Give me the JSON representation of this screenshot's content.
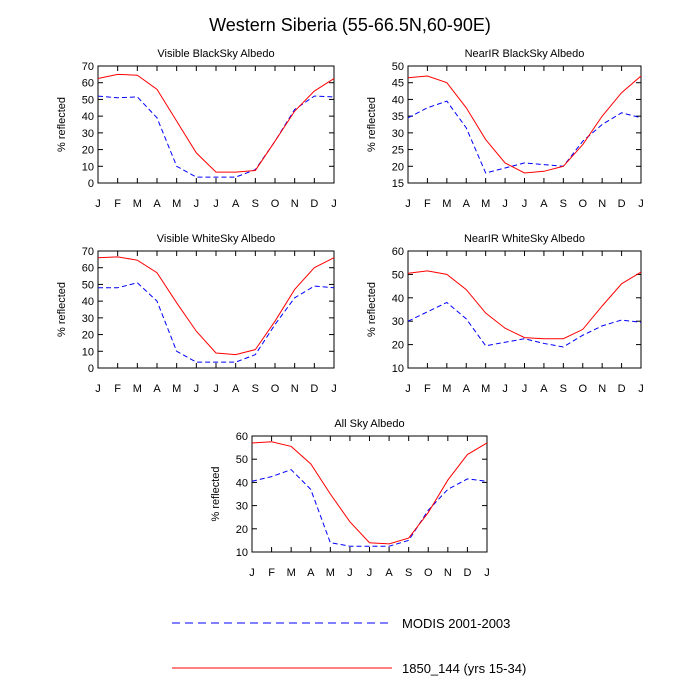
{
  "title": "Western Siberia (55-66.5N,60-90E)",
  "legend": [
    {
      "name": "MODIS 2001-2003",
      "color": "#0000ff",
      "dash": true
    },
    {
      "name": "1850_144 (yrs 15-34)",
      "color": "#ff0000",
      "dash": false
    }
  ],
  "chart_data": [
    {
      "type": "line",
      "title": "Visible BlackSky Albedo",
      "ylabel": "% reflected",
      "categories": [
        "J",
        "F",
        "M",
        "A",
        "M",
        "J",
        "J",
        "A",
        "S",
        "O",
        "N",
        "D",
        "J"
      ],
      "ylim": [
        0,
        70
      ],
      "yticks": [
        0,
        10,
        20,
        30,
        40,
        50,
        60,
        70
      ],
      "series": [
        {
          "name": "MODIS 2001-2003",
          "color": "#0000ff",
          "dash": true,
          "values": [
            52,
            51,
            51.5,
            39,
            10,
            3.5,
            3.5,
            3.5,
            8,
            25,
            44,
            52,
            51.5
          ]
        },
        {
          "name": "1850_144 (yrs 15-34)",
          "color": "#ff0000",
          "dash": false,
          "values": [
            62.5,
            65,
            64.5,
            56,
            37,
            18,
            6.5,
            6.5,
            7.5,
            25,
            43,
            55,
            62.5
          ]
        }
      ]
    },
    {
      "type": "line",
      "title": "NearIR BlackSky Albedo",
      "ylabel": "% reflected",
      "categories": [
        "J",
        "F",
        "M",
        "A",
        "M",
        "J",
        "J",
        "A",
        "S",
        "O",
        "N",
        "D",
        "J"
      ],
      "ylim": [
        15,
        50
      ],
      "yticks": [
        15,
        20,
        25,
        30,
        35,
        40,
        45,
        50
      ],
      "series": [
        {
          "name": "MODIS 2001-2003",
          "color": "#0000ff",
          "dash": true,
          "values": [
            34.5,
            37.5,
            39.5,
            31.5,
            18,
            19.5,
            21,
            20.5,
            20,
            27.5,
            32.5,
            36,
            34.5
          ]
        },
        {
          "name": "1850_144 (yrs 15-34)",
          "color": "#ff0000",
          "dash": false,
          "values": [
            46.5,
            47,
            45,
            37.5,
            28,
            21,
            18,
            18.5,
            20,
            26.5,
            35,
            42,
            47
          ]
        }
      ]
    },
    {
      "type": "line",
      "title": "Visible WhiteSky Albedo",
      "ylabel": "% reflected",
      "categories": [
        "J",
        "F",
        "M",
        "A",
        "M",
        "J",
        "J",
        "A",
        "S",
        "O",
        "N",
        "D",
        "J"
      ],
      "ylim": [
        0,
        70
      ],
      "yticks": [
        0,
        10,
        20,
        30,
        40,
        50,
        60,
        70
      ],
      "series": [
        {
          "name": "MODIS 2001-2003",
          "color": "#0000ff",
          "dash": true,
          "values": [
            48,
            48,
            51,
            40,
            10,
            3.5,
            3.5,
            3.5,
            8,
            26,
            42,
            49,
            48
          ]
        },
        {
          "name": "1850_144 (yrs 15-34)",
          "color": "#ff0000",
          "dash": false,
          "values": [
            66,
            66.5,
            64.5,
            57,
            39,
            22,
            9,
            8,
            11,
            28,
            47,
            60,
            66
          ]
        }
      ]
    },
    {
      "type": "line",
      "title": "NearIR WhiteSky Albedo",
      "ylabel": "% reflected",
      "categories": [
        "J",
        "F",
        "M",
        "A",
        "M",
        "J",
        "J",
        "A",
        "S",
        "O",
        "N",
        "D",
        "J"
      ],
      "ylim": [
        10,
        60
      ],
      "yticks": [
        10,
        20,
        30,
        40,
        50,
        60
      ],
      "series": [
        {
          "name": "MODIS 2001-2003",
          "color": "#0000ff",
          "dash": true,
          "values": [
            30,
            34,
            38,
            31,
            19.5,
            21,
            22.5,
            20.5,
            19,
            24,
            28,
            30.5,
            29.5
          ]
        },
        {
          "name": "1850_144 (yrs 15-34)",
          "color": "#ff0000",
          "dash": false,
          "values": [
            50.5,
            51.5,
            50,
            43.5,
            33.5,
            27,
            23,
            22.5,
            22.5,
            26.5,
            36.5,
            46,
            51
          ]
        }
      ]
    },
    {
      "type": "line",
      "title": "All Sky Albedo",
      "ylabel": "% reflected",
      "categories": [
        "J",
        "F",
        "M",
        "A",
        "M",
        "J",
        "J",
        "A",
        "S",
        "O",
        "N",
        "D",
        "J"
      ],
      "ylim": [
        10,
        60
      ],
      "yticks": [
        10,
        20,
        30,
        40,
        50,
        60
      ],
      "series": [
        {
          "name": "MODIS 2001-2003",
          "color": "#0000ff",
          "dash": true,
          "values": [
            40.5,
            42.5,
            45.5,
            37,
            14,
            12.5,
            12.5,
            12.5,
            15,
            28,
            37,
            41.5,
            40.5
          ]
        },
        {
          "name": "1850_144 (yrs 15-34)",
          "color": "#ff0000",
          "dash": false,
          "values": [
            57,
            57.5,
            55.5,
            48,
            35,
            23,
            14,
            13.5,
            16,
            27,
            41,
            52,
            57
          ]
        }
      ]
    }
  ]
}
